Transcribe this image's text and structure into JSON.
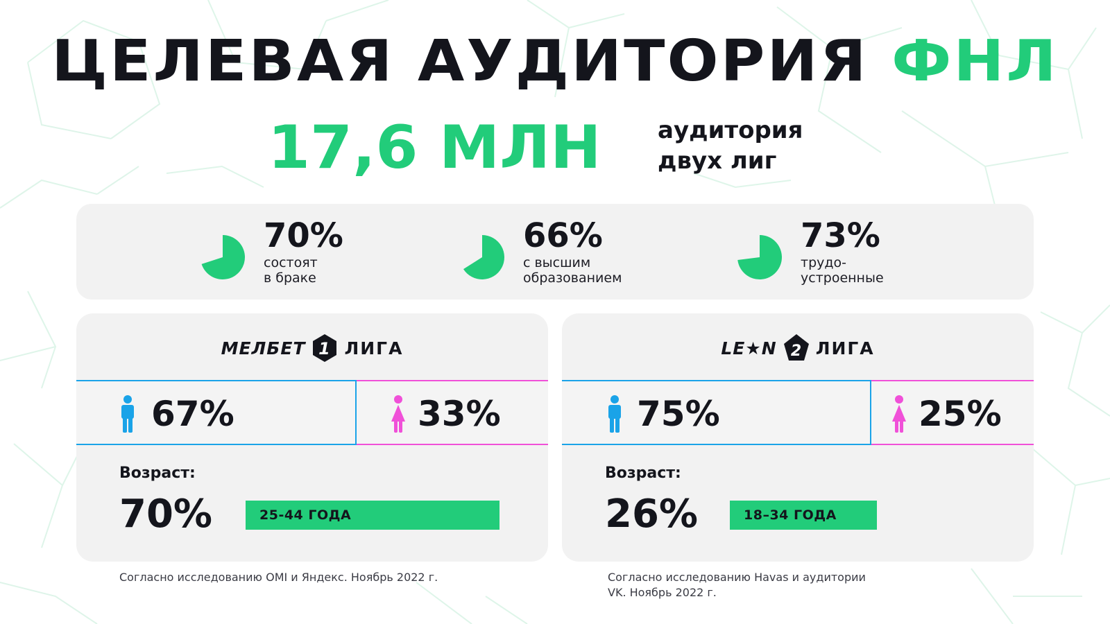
{
  "colors": {
    "green": "#22cc7a",
    "blue": "#1aa3e8",
    "pink": "#f050d8",
    "dark": "#14151c",
    "panel": "#f2f2f2"
  },
  "title": {
    "main": "ЦЕЛЕВАЯ АУДИТОРИЯ",
    "accent": "ФНЛ"
  },
  "hero": {
    "number": "17,6 МЛН",
    "caption_line1": "аудитория",
    "caption_line2": "двух лиг"
  },
  "stats": [
    {
      "value": "70%",
      "fraction": 0.7,
      "label_line1": "состоят",
      "label_line2": "в браке",
      "icon": "pie-chart-icon"
    },
    {
      "value": "66%",
      "fraction": 0.66,
      "label_line1": "с высшим",
      "label_line2": "образованием",
      "icon": "pie-chart-icon"
    },
    {
      "value": "73%",
      "fraction": 0.73,
      "label_line1": "трудо-",
      "label_line2": "устроенные",
      "icon": "pie-chart-icon"
    }
  ],
  "leagues": [
    {
      "sponsor": "МЕЛБЕТ",
      "number": "1",
      "liga": "ЛИГА",
      "male_pct": "67%",
      "female_pct": "33%",
      "age_label": "Возраст:",
      "age_value": "70%",
      "age_range": "25-44 ГОДА",
      "footnote": "Согласно исследованию OMI и Яндекс. Ноябрь 2022 г."
    },
    {
      "sponsor": "LE★N",
      "number": "2",
      "liga": "ЛИГА",
      "male_pct": "75%",
      "female_pct": "25%",
      "age_label": "Возраст:",
      "age_value": "26%",
      "age_range": "18–34 ГОДА",
      "footnote_line1": "Согласно исследованию Havas и аудитории",
      "footnote_line2": "VK. Ноябрь 2022 г."
    }
  ]
}
